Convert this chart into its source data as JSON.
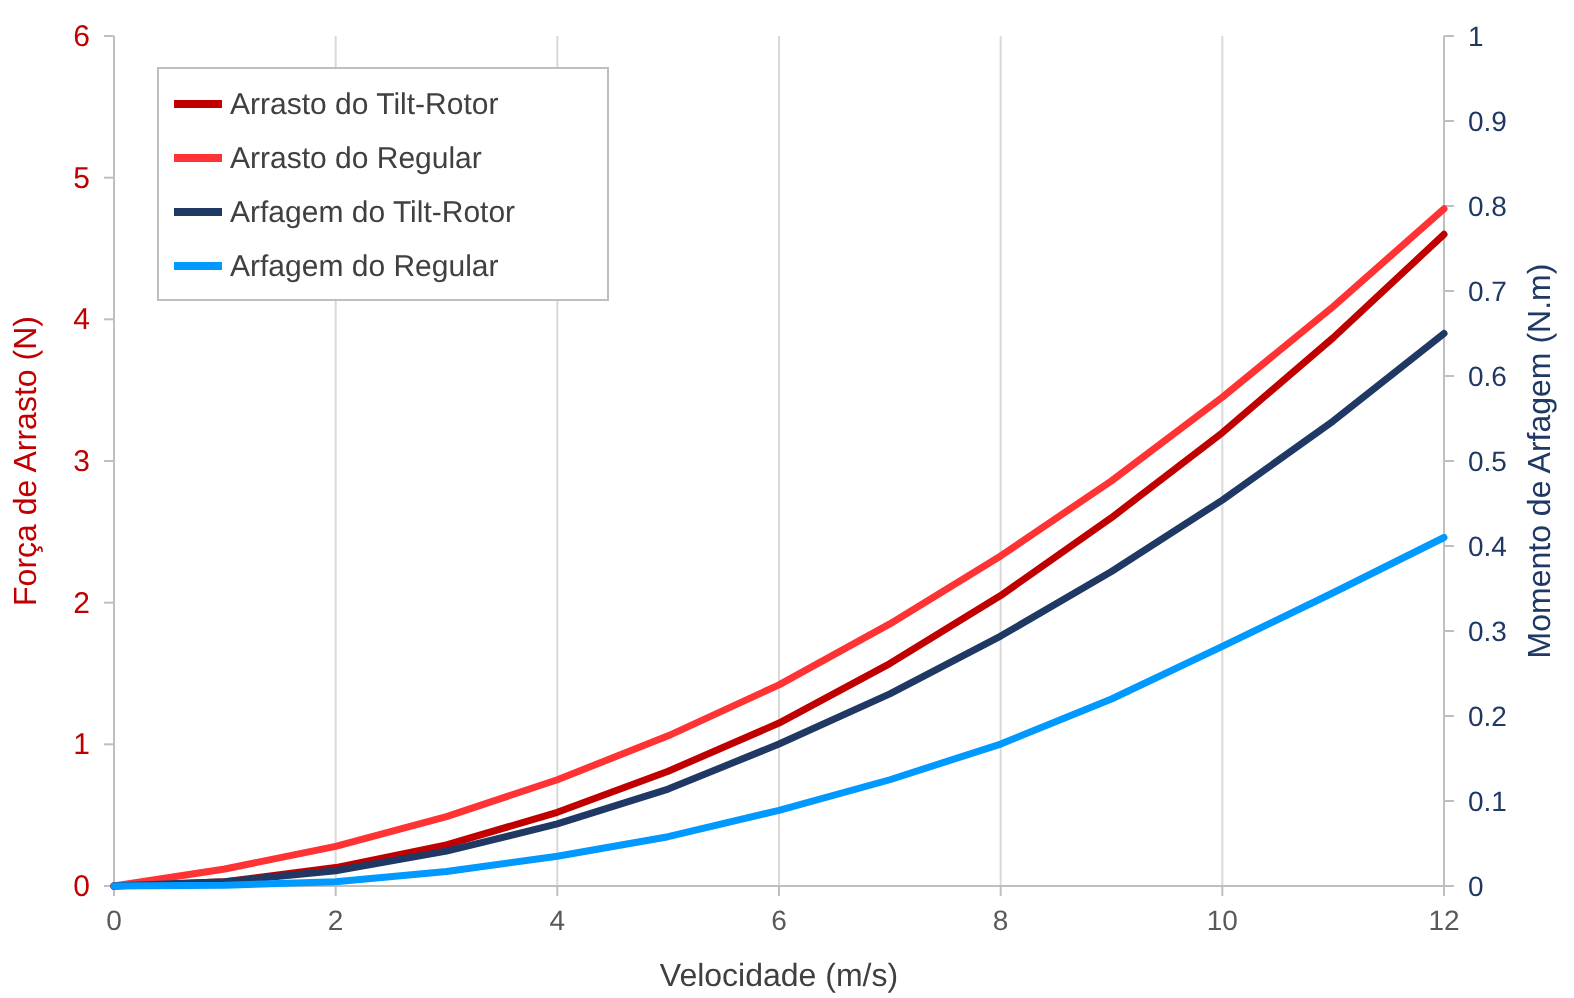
{
  "chart_data": {
    "type": "line",
    "xlabel": "Velocidade (m/s)",
    "ylabel": "Força de Arrasto (N)",
    "y2label": "Momento de Arfagem (N.m)",
    "x": [
      0,
      1,
      2,
      3,
      4,
      5,
      6,
      7,
      8,
      9,
      10,
      11,
      12
    ],
    "xlim": [
      0,
      12
    ],
    "xticks": [
      0,
      2,
      4,
      6,
      8,
      10,
      12
    ],
    "ylim": [
      0,
      6
    ],
    "yticks": [
      0,
      1,
      2,
      3,
      4,
      5,
      6
    ],
    "y2lim": [
      0,
      1
    ],
    "y2ticks": [
      0,
      0.1,
      0.2,
      0.3,
      0.4,
      0.5,
      0.6,
      0.7,
      0.8,
      0.9,
      1
    ],
    "grid": "x",
    "legend": "top left",
    "marker": "none",
    "line_style": "solid",
    "series": [
      {
        "name": "Arrasto do Tilt-Rotor",
        "color": "#c00000",
        "values": [
          0,
          0.03,
          0.13,
          0.29,
          0.52,
          0.81,
          1.15,
          1.57,
          2.05,
          2.6,
          3.2,
          3.87,
          4.6
        ]
      },
      {
        "name": "Arrasto do Regular",
        "color": "#ff3333",
        "values": [
          0,
          0.12,
          0.28,
          0.49,
          0.75,
          1.06,
          1.42,
          1.85,
          2.33,
          2.86,
          3.45,
          4.09,
          4.78
        ]
      },
      {
        "name": "Arfagem do Tilt-Rotor",
        "color": "#203864",
        "axis": "y2",
        "values": [
          0,
          0.005,
          0.018,
          0.041,
          0.073,
          0.114,
          0.167,
          0.226,
          0.294,
          0.37,
          0.454,
          0.547,
          0.65
        ]
      },
      {
        "name": "Arfagem do Regular",
        "color": "#0099ff",
        "axis": "y2",
        "values": [
          0,
          0.001,
          0.005,
          0.017,
          0.035,
          0.058,
          0.089,
          0.125,
          0.167,
          0.22,
          0.282,
          0.345,
          0.41
        ]
      }
    ]
  }
}
